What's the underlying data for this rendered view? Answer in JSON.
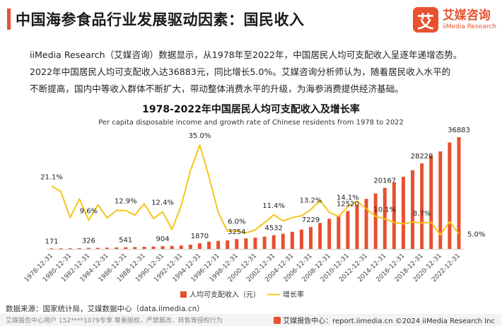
{
  "header": {
    "title": "中国海参食品行业发展驱动因素：国民收入",
    "logo_mark": "艾",
    "logo_cn": "艾媒咨询",
    "logo_en": "iiMedia Research"
  },
  "paragraph": [
    "iiMedia Research（艾媒咨询）数据显示，从1978年至2022年，中国居民人均可支配收入呈逐年递增态势。",
    "2022年中国居民人均可支配收入达36883元，同比增长5.0%。艾媒咨询分析师认为，随着居民收入水平的",
    "不断提高，国内中等收入群体不断扩大，带动整体消费水平的升级，为海参消费提供经济基础。"
  ],
  "source": "数据来源：国家统计局，艾媒数据中心（data.iimedia.cn）",
  "footer": {
    "left": "艾媒报告中心用户 152****1079专享 尊重版权，严禁篡改、转售等侵权行为",
    "right": "艾媒报告中心：report.iimedia.cn   ©2024  iiMedia Research  Inc"
  },
  "chart_data": {
    "type": "bar+line",
    "title": "1978-2022年中国居民人均可支配收入及增长率",
    "subtitle": "Per capita disposable income and growth rate of Chinese residents from 1978 to 2022",
    "x": [
      "1978-12-31",
      "1979-12-31",
      "1980-12-31",
      "1981-12-31",
      "1982-12-31",
      "1983-12-31",
      "1984-12-31",
      "1985-12-31",
      "1986-12-31",
      "1987-12-31",
      "1988-12-31",
      "1989-12-31",
      "1990-12-31",
      "1991-12-31",
      "1992-12-31",
      "1993-12-31",
      "1994-12-31",
      "1995-12-31",
      "1996-12-31",
      "1997-12-31",
      "1998-12-31",
      "1999-12-31",
      "2000-12-31",
      "2001-12-31",
      "2002-12-31",
      "2003-12-31",
      "2004-12-31",
      "2005-12-31",
      "2006-12-31",
      "2007-12-31",
      "2008-12-31",
      "2009-12-31",
      "2010-12-31",
      "2011-12-31",
      "2012-12-31",
      "2013-12-31",
      "2014-12-31",
      "2015-12-31",
      "2016-12-31",
      "2017-12-31",
      "2018-12-31",
      "2019-12-31",
      "2020-12-31",
      "2021-12-31",
      "2022-12-31"
    ],
    "x_tick_labels": [
      "1978-12-31",
      "1980-12-31",
      "1982-12-31",
      "1984-12-31",
      "1986-12-31",
      "1988-12-31",
      "1990-12-31",
      "1992-12-31",
      "1994-12-31",
      "1996-12-31",
      "1998-12-31",
      "2000-12-31",
      "2002-12-31",
      "2004-12-31",
      "2006-12-31",
      "2008-12-31",
      "2010-12-31",
      "2012-12-31",
      "2014-12-31",
      "2016-12-31",
      "2018-12-31",
      "2020-12-31",
      "2022-12-31"
    ],
    "series": [
      {
        "name": "人均可支配收入（元）",
        "kind": "bar",
        "color": "#e8502f",
        "values": [
          171,
          185,
          210,
          230,
          326,
          360,
          400,
          480,
          541,
          600,
          700,
          780,
          904,
          980,
          1110,
          1400,
          1870,
          2360,
          2650,
          2800,
          3254,
          3480,
          3720,
          4070,
          4532,
          5010,
          5660,
          6380,
          7229,
          8580,
          9955,
          10980,
          12520,
          14550,
          16510,
          18310,
          20167,
          21966,
          23821,
          25974,
          28228,
          30733,
          32189,
          35128,
          36883
        ],
        "labeled_indices": [
          0,
          4,
          8,
          12,
          16,
          20,
          24,
          28,
          32,
          36,
          40,
          44
        ]
      },
      {
        "name": "增长率",
        "kind": "line",
        "color": "#f5c518",
        "unit": "%",
        "values": [
          21.1,
          19.3,
          10.5,
          16.8,
          9.6,
          14.8,
          10.4,
          12.9,
          12.9,
          11.3,
          15.2,
          10.2,
          12.4,
          6.5,
          14.5,
          26.4,
          35.0,
          24.3,
          12.3,
          5.9,
          6.0,
          5.3,
          6.4,
          8.8,
          11.4,
          9.4,
          10.5,
          11.1,
          13.2,
          16.2,
          12.3,
          10.9,
          14.1,
          16.0,
          13.5,
          10.9,
          10.1,
          8.9,
          8.4,
          9.0,
          8.7,
          8.9,
          4.7,
          9.1,
          5.0
        ],
        "labeled_indices": [
          0,
          4,
          8,
          12,
          16,
          20,
          24,
          28,
          32,
          36,
          40,
          44
        ]
      }
    ],
    "legend_position": "bottom"
  }
}
